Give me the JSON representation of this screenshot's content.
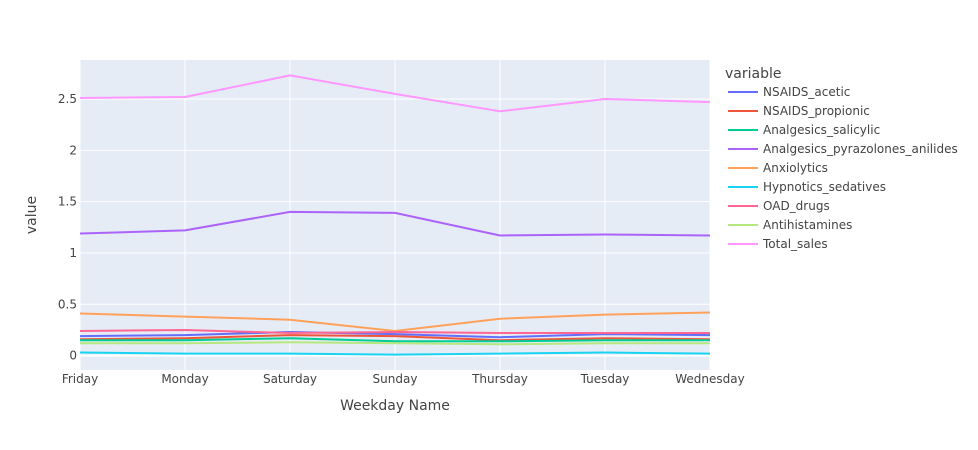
{
  "chart_data": {
    "type": "line",
    "title": "",
    "xlabel": "Weekday Name",
    "ylabel": "value",
    "legend_title": "variable",
    "legend_position": "right",
    "grid": true,
    "categories": [
      "Friday",
      "Monday",
      "Saturday",
      "Sunday",
      "Thursday",
      "Tuesday",
      "Wednesday"
    ],
    "ylim": [
      -0.14,
      2.88
    ],
    "yticks": [
      0,
      0.5,
      1,
      1.5,
      2,
      2.5
    ],
    "ytick_labels": [
      "0",
      "0.5",
      "1",
      "1.5",
      "2",
      "2.5"
    ],
    "series": [
      {
        "name": "NSAIDS_acetic",
        "color": "#636efa",
        "values": [
          0.19,
          0.2,
          0.23,
          0.21,
          0.18,
          0.21,
          0.2
        ]
      },
      {
        "name": "NSAIDS_propionic",
        "color": "#ef553b",
        "values": [
          0.16,
          0.17,
          0.2,
          0.19,
          0.15,
          0.17,
          0.16
        ]
      },
      {
        "name": "Analgesics_salicylic",
        "color": "#00cc96",
        "values": [
          0.15,
          0.15,
          0.17,
          0.14,
          0.14,
          0.15,
          0.15
        ]
      },
      {
        "name": "Analgesics_pyrazolones_anilides",
        "color": "#ab63fa",
        "values": [
          1.19,
          1.22,
          1.4,
          1.39,
          1.17,
          1.18,
          1.17
        ]
      },
      {
        "name": "Anxiolytics",
        "color": "#ffa15a",
        "values": [
          0.41,
          0.38,
          0.35,
          0.24,
          0.36,
          0.4,
          0.42
        ]
      },
      {
        "name": "Hypnotics_sedatives",
        "color": "#19d3f3",
        "values": [
          0.03,
          0.02,
          0.02,
          0.01,
          0.02,
          0.03,
          0.02
        ]
      },
      {
        "name": "OAD_drugs",
        "color": "#ff6692",
        "values": [
          0.24,
          0.25,
          0.22,
          0.23,
          0.22,
          0.22,
          0.22
        ]
      },
      {
        "name": "Antihistamines",
        "color": "#b6e880",
        "values": [
          0.12,
          0.12,
          0.13,
          0.12,
          0.11,
          0.12,
          0.12
        ]
      },
      {
        "name": "Total_sales",
        "color": "#ff97ff",
        "values": [
          2.51,
          2.52,
          2.73,
          2.55,
          2.38,
          2.5,
          2.47
        ]
      }
    ]
  }
}
